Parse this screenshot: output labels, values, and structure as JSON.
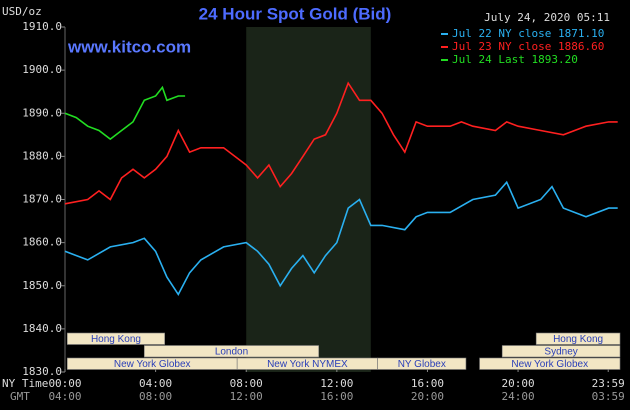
{
  "chart_data": {
    "type": "line",
    "title": "24 Hour Spot Gold (Bid)",
    "unit_label": "USD/oz",
    "date_label": "July 24, 2020 05:11",
    "site": "www.kitco.com",
    "x_axis_labels": [
      "NY Time",
      "GMT"
    ],
    "xlim": [
      0,
      24.5
    ],
    "xticks": [
      {
        "value": 0,
        "label": "00:00"
      },
      {
        "value": 4,
        "label": "04:00"
      },
      {
        "value": 8,
        "label": "08:00"
      },
      {
        "value": 12,
        "label": "12:00"
      },
      {
        "value": 16,
        "label": "16:00"
      },
      {
        "value": 20,
        "label": "20:00"
      },
      {
        "value": 23.98,
        "label": "23:59"
      }
    ],
    "gmt_ticks": [
      "04:00",
      "08:00",
      "12:00",
      "16:00",
      "20:00",
      "24:00",
      "03:59"
    ],
    "ylim": [
      1830,
      1910
    ],
    "yticks": [
      {
        "value": 1830,
        "label": "1830.0"
      },
      {
        "value": 1840,
        "label": "1840.0"
      },
      {
        "value": 1850,
        "label": "1850.0"
      },
      {
        "value": 1860,
        "label": "1860.0"
      },
      {
        "value": 1870,
        "label": "1870.0"
      },
      {
        "value": 1880,
        "label": "1880.0"
      },
      {
        "value": 1890,
        "label": "1890.0"
      },
      {
        "value": 1900,
        "label": "1900.0"
      },
      {
        "value": 1910,
        "label": "1910.0"
      }
    ],
    "shade": [
      8,
      13.5
    ],
    "sessions": [
      [
        {
          "name": "Hong Kong",
          "start": 0.1,
          "end": 4.4
        },
        {
          "name": "Hong Kong",
          "start": 20.8,
          "end": 24.5
        }
      ],
      [
        {
          "name": "London",
          "start": 3.5,
          "end": 11.2
        },
        {
          "name": "Sydney",
          "start": 19.3,
          "end": 24.5
        }
      ],
      [
        {
          "name": "New York Globex",
          "start": 0.1,
          "end": 7.6
        },
        {
          "name": "New York NYMEX",
          "start": 7.6,
          "end": 13.8
        },
        {
          "name": "NY Globex",
          "start": 13.8,
          "end": 17.7
        },
        {
          "name": "New York Globex",
          "start": 18.3,
          "end": 24.5
        }
      ]
    ],
    "series": [
      {
        "name": "Jul 22 NY close 1871.10",
        "color": "#2ab0f0",
        "x": [
          0,
          1,
          2,
          3,
          3.5,
          4,
          4.5,
          5,
          5.5,
          6,
          7,
          8,
          8.5,
          9,
          9.5,
          10,
          10.5,
          11,
          11.5,
          12,
          12.5,
          13,
          13.5,
          14,
          15,
          15.5,
          16,
          17,
          18,
          19,
          19.5,
          20,
          21,
          21.5,
          22,
          23,
          24,
          24.4
        ],
        "values": [
          1858,
          1856,
          1859,
          1860,
          1861,
          1858,
          1852,
          1848,
          1853,
          1856,
          1859,
          1860,
          1858,
          1855,
          1850,
          1854,
          1857,
          1853,
          1857,
          1860,
          1868,
          1870,
          1864,
          1864,
          1863,
          1866,
          1867,
          1867,
          1870,
          1871,
          1874,
          1868,
          1870,
          1873,
          1868,
          1866,
          1868,
          1868
        ]
      },
      {
        "name": "Jul 23 NY close 1886.60",
        "color": "#ff2020",
        "x": [
          0,
          1,
          1.5,
          2,
          2.5,
          3,
          3.5,
          4,
          4.5,
          5,
          5.5,
          6,
          7,
          7.5,
          8,
          8.5,
          9,
          9.5,
          10,
          10.5,
          11,
          11.5,
          12,
          12.5,
          13,
          13.5,
          14,
          14.5,
          15,
          15.5,
          16,
          17,
          17.5,
          18,
          19,
          19.5,
          20,
          21,
          22,
          23,
          24,
          24.4
        ],
        "values": [
          1869,
          1870,
          1872,
          1870,
          1875,
          1877,
          1875,
          1877,
          1880,
          1886,
          1881,
          1882,
          1882,
          1880,
          1878,
          1875,
          1878,
          1873,
          1876,
          1880,
          1884,
          1885,
          1890,
          1897,
          1893,
          1893,
          1890,
          1885,
          1881,
          1888,
          1887,
          1887,
          1888,
          1887,
          1886,
          1888,
          1887,
          1886,
          1885,
          1887,
          1888,
          1888
        ]
      },
      {
        "name": "Jul 24 Last 1893.20",
        "color": "#22dd22",
        "x": [
          0,
          0.5,
          1,
          1.5,
          2,
          2.5,
          3,
          3.5,
          4,
          4.3,
          4.5,
          5,
          5.3
        ],
        "values": [
          1890,
          1889,
          1887,
          1886,
          1884,
          1886,
          1888,
          1893,
          1894,
          1896,
          1893,
          1894,
          1894
        ]
      }
    ]
  }
}
